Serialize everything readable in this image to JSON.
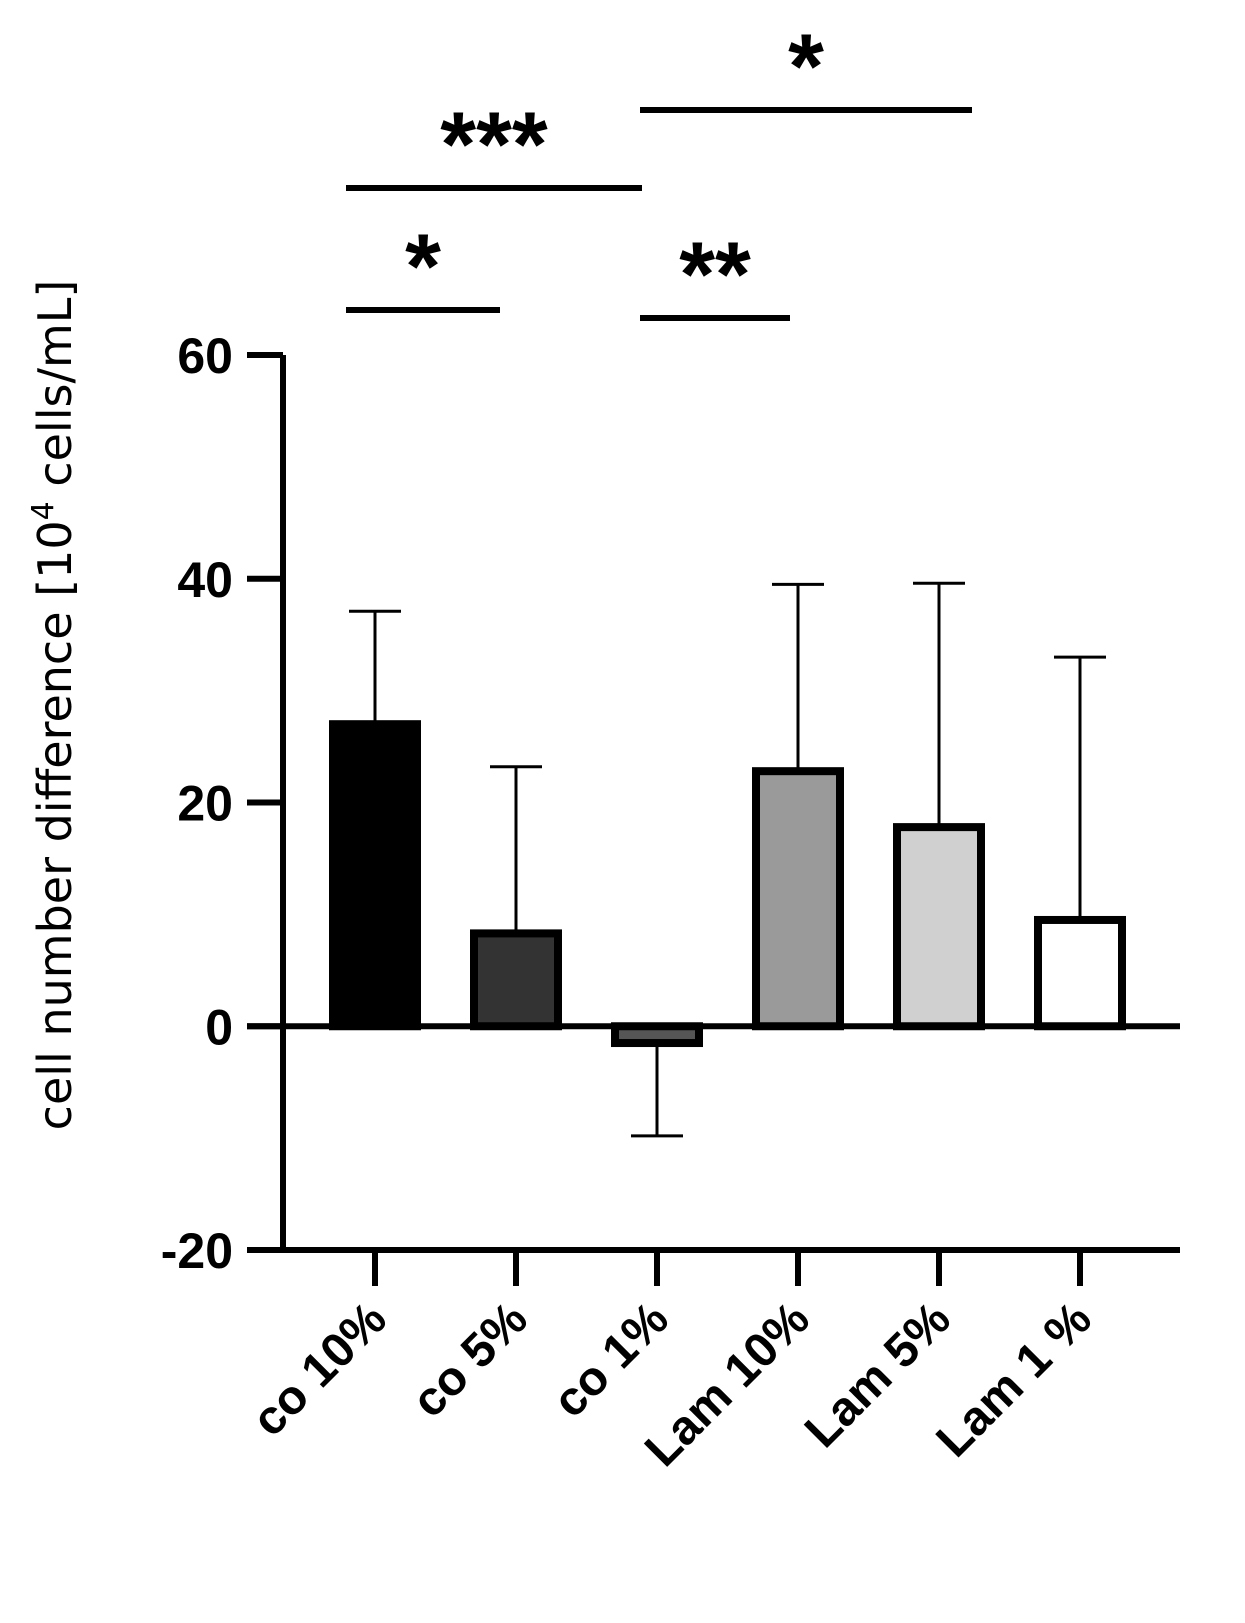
{
  "chart_data": {
    "type": "bar",
    "title": "",
    "ylabel": "cell number difference [10",
    "ylabel_superscript": "4",
    "ylabel_suffix": " cells/mL]",
    "xlabel": "",
    "ylim": [
      -20,
      60
    ],
    "yticks": [
      -20,
      0,
      20,
      40,
      60
    ],
    "grid": false,
    "categories": [
      "co 10%",
      "co 5%",
      "co 1%",
      "Lam 10%",
      "Lam 5%",
      "Lam 1 %"
    ],
    "values": [
      27,
      8.3,
      -1.5,
      22.8,
      17.8,
      9.5
    ],
    "error_upper": [
      37.1,
      23.2,
      -9.8,
      39.5,
      39.6,
      33.0
    ],
    "bar_colors": [
      "#000000",
      "#333333",
      "#555555",
      "#9a9a9a",
      "#d0d0d0",
      "#ffffff"
    ],
    "significance": [
      {
        "from": 0,
        "to": 1,
        "label": "*"
      },
      {
        "from": 0,
        "to": 2,
        "label": "***"
      },
      {
        "from": 2,
        "to": 3,
        "label": "**"
      },
      {
        "from": 2,
        "to": 4,
        "label": "*"
      }
    ]
  }
}
